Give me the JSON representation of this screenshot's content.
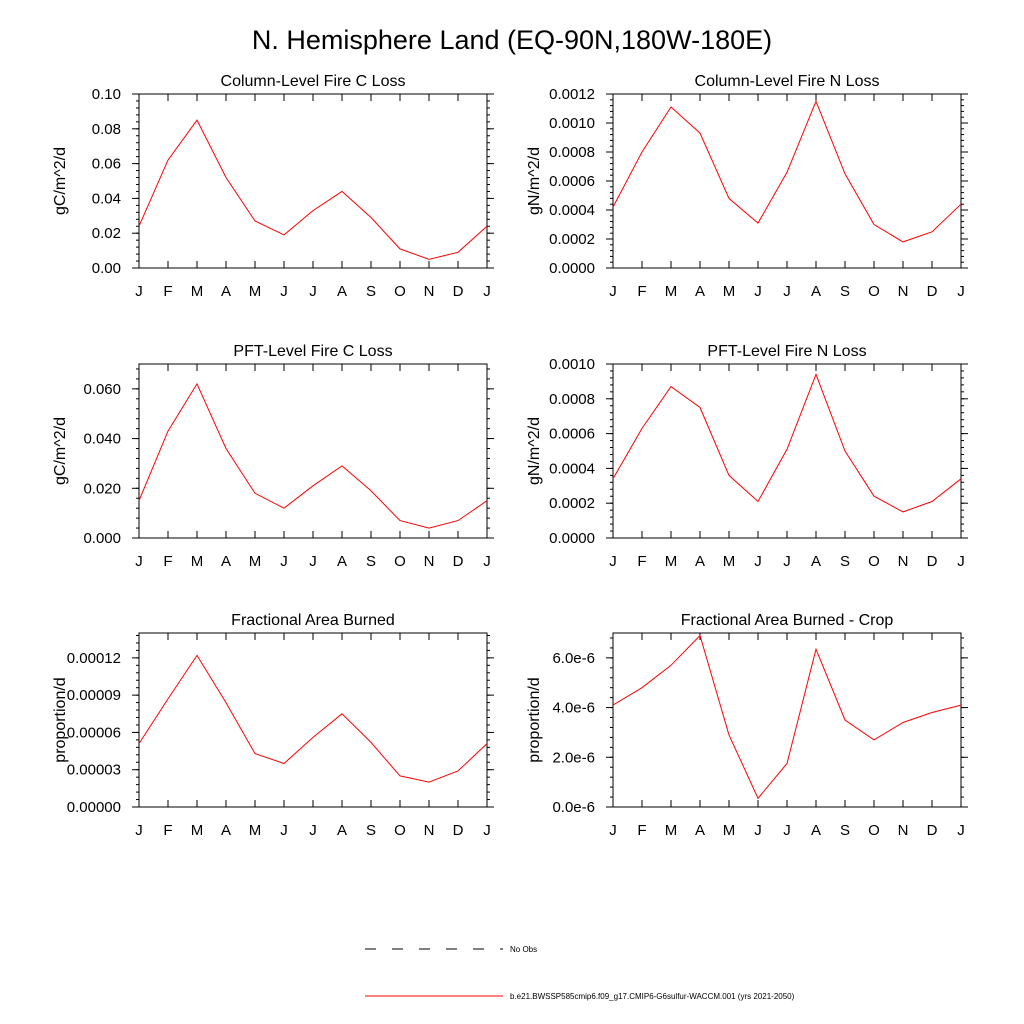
{
  "figure": {
    "title": "N. Hemisphere Land (EQ-90N,180W-180E)"
  },
  "colors": {
    "series_line": "#ff0000",
    "obs_line": "#000000",
    "axes": "#000000",
    "background": "#ffffff"
  },
  "legend": {
    "entries": [
      {
        "label": "No Obs",
        "style": "dashed",
        "color": "#000000"
      },
      {
        "label": "b.e21.BWSSP585cmip6.f09_g17.CMIP6-G6sulfur-WACCM.001 (yrs 2021-2050)",
        "style": "solid",
        "color": "#ff0000"
      }
    ]
  },
  "chart_data": [
    {
      "type": "line",
      "title": "Column-Level Fire C Loss",
      "ylabel": "gC/m^2/d",
      "xlabel": "",
      "categories": [
        "J",
        "F",
        "M",
        "A",
        "M",
        "J",
        "J",
        "A",
        "S",
        "O",
        "N",
        "D",
        "J"
      ],
      "ylim": [
        0,
        0.1
      ],
      "yticks": [
        "0.00",
        "0.02",
        "0.04",
        "0.06",
        "0.08",
        "0.10"
      ],
      "ytick_values": [
        0,
        0.02,
        0.04,
        0.06,
        0.08,
        0.1
      ],
      "grid": false,
      "series": [
        {
          "values": [
            0.024,
            0.062,
            0.085,
            0.052,
            0.027,
            0.019,
            0.033,
            0.044,
            0.029,
            0.011,
            0.005,
            0.009,
            0.024
          ]
        }
      ]
    },
    {
      "type": "line",
      "title": "Column-Level Fire N Loss",
      "ylabel": "gN/m^2/d",
      "xlabel": "",
      "categories": [
        "J",
        "F",
        "M",
        "A",
        "M",
        "J",
        "J",
        "A",
        "S",
        "O",
        "N",
        "D",
        "J"
      ],
      "ylim": [
        0,
        0.0012
      ],
      "yticks": [
        "0.0000",
        "0.0002",
        "0.0004",
        "0.0006",
        "0.0008",
        "0.0010",
        "0.0012"
      ],
      "ytick_values": [
        0,
        0.0002,
        0.0004,
        0.0006,
        0.0008,
        0.001,
        0.0012
      ],
      "grid": false,
      "series": [
        {
          "values": [
            0.00042,
            0.0008,
            0.00111,
            0.00093,
            0.00048,
            0.00031,
            0.00066,
            0.00115,
            0.00065,
            0.0003,
            0.00018,
            0.00025,
            0.00044
          ]
        }
      ]
    },
    {
      "type": "line",
      "title": "PFT-Level Fire C Loss",
      "ylabel": "gC/m^2/d",
      "xlabel": "",
      "categories": [
        "J",
        "F",
        "M",
        "A",
        "M",
        "J",
        "J",
        "A",
        "S",
        "O",
        "N",
        "D",
        "J"
      ],
      "ylim": [
        0,
        0.07
      ],
      "yticks": [
        "0.000",
        "0.020",
        "0.040",
        "0.060"
      ],
      "ytick_values": [
        0,
        0.02,
        0.04,
        0.06
      ],
      "grid": false,
      "series": [
        {
          "values": [
            0.015,
            0.043,
            0.062,
            0.036,
            0.018,
            0.012,
            0.021,
            0.029,
            0.019,
            0.007,
            0.004,
            0.007,
            0.015
          ]
        }
      ]
    },
    {
      "type": "line",
      "title": "PFT-Level Fire N Loss",
      "ylabel": "gN/m^2/d",
      "xlabel": "",
      "categories": [
        "J",
        "F",
        "M",
        "A",
        "M",
        "J",
        "J",
        "A",
        "S",
        "O",
        "N",
        "D",
        "J"
      ],
      "ylim": [
        0,
        0.001
      ],
      "yticks": [
        "0.0000",
        "0.0002",
        "0.0004",
        "0.0006",
        "0.0008",
        "0.0010"
      ],
      "ytick_values": [
        0,
        0.0002,
        0.0004,
        0.0006,
        0.0008,
        0.001
      ],
      "grid": false,
      "series": [
        {
          "values": [
            0.00034,
            0.00063,
            0.00087,
            0.00075,
            0.00036,
            0.00021,
            0.00051,
            0.00094,
            0.0005,
            0.00024,
            0.00015,
            0.00021,
            0.00034
          ]
        }
      ]
    },
    {
      "type": "line",
      "title": "Fractional Area Burned",
      "ylabel": "proportion/d",
      "xlabel": "",
      "categories": [
        "J",
        "F",
        "M",
        "A",
        "M",
        "J",
        "J",
        "A",
        "S",
        "O",
        "N",
        "D",
        "J"
      ],
      "ylim": [
        0,
        0.00014
      ],
      "yticks": [
        "0.00000",
        "0.00003",
        "0.00006",
        "0.00009",
        "0.00012"
      ],
      "ytick_values": [
        0,
        3e-05,
        6e-05,
        9e-05,
        0.00012
      ],
      "grid": false,
      "series": [
        {
          "values": [
            5.1e-05,
            8.7e-05,
            0.000122,
            8.4e-05,
            4.3e-05,
            3.5e-05,
            5.6e-05,
            7.5e-05,
            5.2e-05,
            2.5e-05,
            2e-05,
            2.9e-05,
            5.1e-05
          ]
        }
      ]
    },
    {
      "type": "line",
      "title": "Fractional Area Burned - Crop",
      "ylabel": "proportion/d",
      "xlabel": "",
      "categories": [
        "J",
        "F",
        "M",
        "A",
        "M",
        "J",
        "J",
        "A",
        "S",
        "O",
        "N",
        "D",
        "J"
      ],
      "ylim": [
        0,
        7e-06
      ],
      "yticks": [
        "0.0e-6",
        "2.0e-6",
        "4.0e-6",
        "6.0e-6"
      ],
      "ytick_values": [
        0,
        2e-06,
        4e-06,
        6e-06
      ],
      "grid": false,
      "series": [
        {
          "values": [
            4.1e-06,
            4.8e-06,
            5.7e-06,
            6.9e-06,
            2.9e-06,
            3.5e-07,
            1.75e-06,
            6.35e-06,
            3.5e-06,
            2.7e-06,
            3.4e-06,
            3.8e-06,
            4.1e-06
          ]
        }
      ]
    }
  ]
}
